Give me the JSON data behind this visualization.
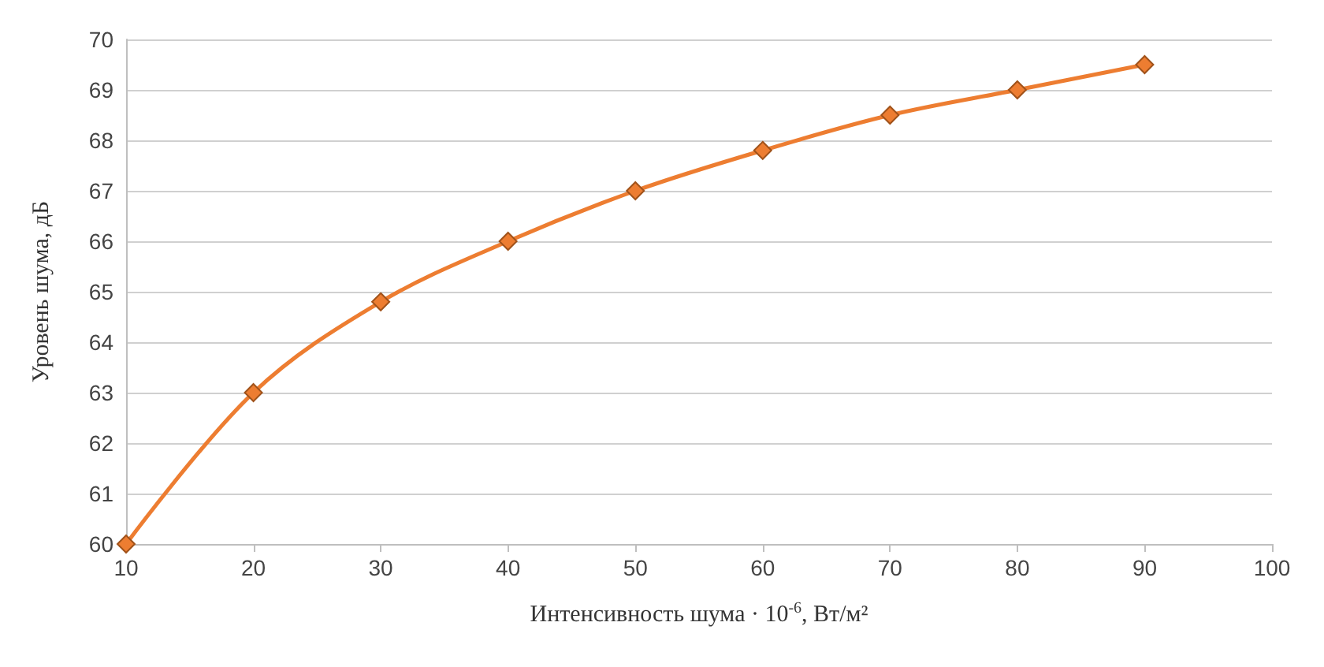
{
  "chart_data": {
    "type": "line",
    "xlabel": "Интенсивность шума · 10$^{-6}$, Вт/м²",
    "ylabel": "Уровень шума, дБ",
    "x": [
      10,
      20,
      30,
      40,
      50,
      60,
      70,
      80,
      90
    ],
    "series": [
      {
        "color": "#ed7d31",
        "values": [
          60,
          63,
          64.8,
          66,
          67,
          67.8,
          68.5,
          69,
          69.5
        ]
      }
    ],
    "xlim": [
      10,
      100
    ],
    "xticks": [
      10,
      20,
      30,
      40,
      50,
      60,
      70,
      80,
      90,
      100
    ],
    "ylim": [
      60,
      70
    ],
    "yticks": [
      60,
      61,
      62,
      63,
      64,
      65,
      66,
      67,
      68,
      69,
      70
    ],
    "grid": "y",
    "marker": "diamond",
    "line_style": "solid"
  }
}
